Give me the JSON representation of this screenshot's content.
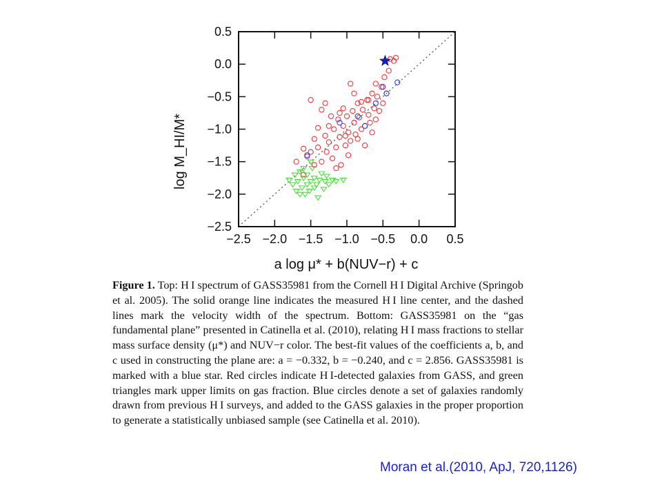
{
  "chart_data": {
    "type": "scatter",
    "title": "",
    "xlabel": "a log μ* + b(NUV−r) + c",
    "ylabel": "log M_HI/M*",
    "xlim": [
      -2.5,
      0.5
    ],
    "ylim": [
      -2.5,
      0.5
    ],
    "x_ticks": [
      "−2.5",
      "−2.0",
      "−1.5",
      "−1.0",
      "−0.5",
      "0.0",
      "0.5"
    ],
    "y_ticks": [
      "0.5",
      "0.0",
      "−0.5",
      "−1.0",
      "−1.5",
      "−2.0",
      "−2.5"
    ],
    "x_tick_values": [
      -2.5,
      -2.0,
      -1.5,
      -1.0,
      -0.5,
      0.0,
      0.5
    ],
    "y_tick_values": [
      0.5,
      0.0,
      -0.5,
      -1.0,
      -1.5,
      -2.0,
      -2.5
    ],
    "one_to_one_line": true,
    "series": [
      {
        "marker": "open-circle",
        "color": "#e8393a",
        "points": [
          [
            -1.6,
            -1.3
          ],
          [
            -1.55,
            -1.42
          ],
          [
            -1.5,
            -1.35
          ],
          [
            -1.45,
            -1.15
          ],
          [
            -1.4,
            -1.28
          ],
          [
            -1.35,
            -1.5
          ],
          [
            -1.3,
            -1.1
          ],
          [
            -1.28,
            -1.35
          ],
          [
            -1.25,
            -1.2
          ],
          [
            -1.2,
            -1.45
          ],
          [
            -1.18,
            -1.0
          ],
          [
            -1.15,
            -1.28
          ],
          [
            -1.12,
            -0.85
          ],
          [
            -1.1,
            -1.12
          ],
          [
            -1.08,
            -1.55
          ],
          [
            -1.05,
            -0.95
          ],
          [
            -1.02,
            -1.25
          ],
          [
            -1.0,
            -0.8
          ],
          [
            -0.98,
            -1.05
          ],
          [
            -0.95,
            -1.18
          ],
          [
            -0.92,
            -0.72
          ],
          [
            -0.9,
            -0.9
          ],
          [
            -0.88,
            -1.08
          ],
          [
            -0.85,
            -0.6
          ],
          [
            -0.83,
            -0.82
          ],
          [
            -0.8,
            -1.0
          ],
          [
            -0.78,
            -0.7
          ],
          [
            -0.75,
            -0.95
          ],
          [
            -0.72,
            -0.55
          ],
          [
            -0.7,
            -0.78
          ],
          [
            -0.68,
            -0.9
          ],
          [
            -0.65,
            -0.45
          ],
          [
            -0.62,
            -0.68
          ],
          [
            -0.6,
            -0.85
          ],
          [
            -0.58,
            -0.5
          ],
          [
            -0.55,
            -0.72
          ],
          [
            -0.52,
            -0.35
          ],
          [
            -0.5,
            -0.6
          ],
          [
            -0.48,
            -0.2
          ],
          [
            -0.45,
            -0.45
          ],
          [
            -0.42,
            -0.1
          ],
          [
            -0.4,
            0.08
          ],
          [
            -0.35,
            0.05
          ],
          [
            -0.32,
            0.1
          ],
          [
            -1.25,
            -0.95
          ],
          [
            -1.3,
            -0.6
          ],
          [
            -1.35,
            -0.7
          ],
          [
            -1.4,
            -0.98
          ],
          [
            -1.45,
            -1.55
          ],
          [
            -1.5,
            -0.55
          ],
          [
            -1.6,
            -1.7
          ],
          [
            -1.7,
            -1.5
          ],
          [
            -1.15,
            -1.6
          ],
          [
            -0.98,
            -1.4
          ],
          [
            -0.75,
            -1.25
          ],
          [
            -0.7,
            -0.55
          ],
          [
            -0.9,
            -0.45
          ],
          [
            -1.05,
            -0.68
          ],
          [
            -1.22,
            -0.8
          ],
          [
            -0.95,
            -0.3
          ],
          [
            -1.02,
            -1.1
          ],
          [
            -0.85,
            -1.15
          ],
          [
            -0.6,
            -0.3
          ],
          [
            -0.65,
            -1.05
          ],
          [
            -0.8,
            -0.58
          ],
          [
            -1.1,
            -0.75
          ]
        ]
      },
      {
        "marker": "open-circle",
        "color": "#2b3fe0",
        "points": [
          [
            -1.55,
            -1.4
          ],
          [
            -1.1,
            -0.9
          ],
          [
            -0.85,
            -0.8
          ],
          [
            -0.75,
            -0.95
          ],
          [
            -0.6,
            -0.6
          ],
          [
            -0.45,
            -0.45
          ],
          [
            -0.3,
            -0.28
          ],
          [
            -0.5,
            -0.35
          ]
        ]
      },
      {
        "marker": "open-triangle-down",
        "color": "#4ade3a",
        "points": [
          [
            -1.8,
            -1.78
          ],
          [
            -1.75,
            -1.85
          ],
          [
            -1.72,
            -1.7
          ],
          [
            -1.7,
            -1.95
          ],
          [
            -1.68,
            -1.8
          ],
          [
            -1.65,
            -1.65
          ],
          [
            -1.62,
            -1.9
          ],
          [
            -1.6,
            -1.75
          ],
          [
            -1.58,
            -2.0
          ],
          [
            -1.55,
            -1.85
          ],
          [
            -1.55,
            -1.7
          ],
          [
            -1.52,
            -1.95
          ],
          [
            -1.5,
            -1.8
          ],
          [
            -1.48,
            -1.6
          ],
          [
            -1.45,
            -1.9
          ],
          [
            -1.45,
            -1.75
          ],
          [
            -1.42,
            -1.85
          ],
          [
            -1.4,
            -2.05
          ],
          [
            -1.38,
            -1.78
          ],
          [
            -1.35,
            -1.68
          ],
          [
            -1.32,
            -1.92
          ],
          [
            -1.3,
            -1.8
          ],
          [
            -1.28,
            -1.72
          ],
          [
            -1.25,
            -1.85
          ],
          [
            -1.2,
            -1.78
          ],
          [
            -1.15,
            -1.8
          ],
          [
            -1.05,
            -1.78
          ],
          [
            -1.6,
            -1.6
          ],
          [
            -1.65,
            -2.0
          ],
          [
            -1.5,
            -1.5
          ]
        ]
      },
      {
        "name": "GASS35981",
        "marker": "filled-star",
        "color": "#1020c8",
        "points": [
          [
            -0.47,
            0.05
          ]
        ]
      }
    ]
  },
  "caption": {
    "label": "Figure 1.",
    "text": "Top: H I spectrum of GASS35981 from the Cornell H I Digital Archive (Springob et al. 2005). The solid orange line indicates the measured H I line center, and the dashed lines mark the velocity width of the spectrum. Bottom: GASS35981 on the “gas fundamental plane” presented in Catinella et al. (2010), relating H I mass fractions to stellar mass surface density (μ*) and NUV−r color. The best-fit values of the coefficients a, b, and c used in constructing the plane are: a = −0.332, b = −0.240, and c = 2.856. GASS35981 is marked with a blue star. Red circles indicate H I-detected galaxies from GASS, and green triangles mark upper limits on gas fraction. Blue circles denote a set of galaxies randomly drawn from previous H I surveys, and added to the GASS galaxies in the proper proportion to generate a statistically unbiased sample (see Catinella et al. 2010)."
  },
  "citation": "Moran et al.(2010, ApJ, 720,1126)"
}
